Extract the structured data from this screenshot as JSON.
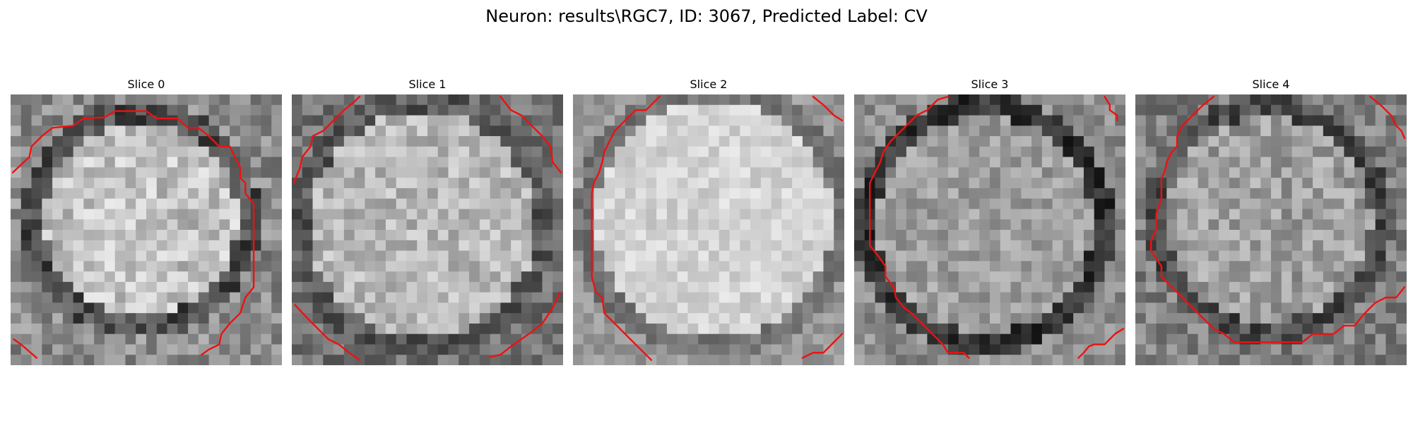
{
  "figure": {
    "title": "Neuron: results\\RGC7, ID: 3067, Predicted Label: CV"
  },
  "grid_size": 26,
  "contour_color": "#ee1111",
  "slices": [
    {
      "label": "Slice 0",
      "contours": [
        [
          [
            0.2,
            7.5
          ],
          [
            1.8,
            6.0
          ],
          [
            2.0,
            5.0
          ],
          [
            3.0,
            4.0
          ],
          [
            4.0,
            3.2
          ],
          [
            6.0,
            3.0
          ],
          [
            7.0,
            2.3
          ],
          [
            9.0,
            2.2
          ],
          [
            10.0,
            1.6
          ],
          [
            13.0,
            1.6
          ],
          [
            14.0,
            2.3
          ],
          [
            16.0,
            2.3
          ],
          [
            17.0,
            3.2
          ],
          [
            18.0,
            3.2
          ],
          [
            19.0,
            4.0
          ],
          [
            20.0,
            5.0
          ],
          [
            21.0,
            5.0
          ],
          [
            21.5,
            6.0
          ],
          [
            22.0,
            7.0
          ],
          [
            22.0,
            8.0
          ],
          [
            22.5,
            8.5
          ],
          [
            22.5,
            9.5
          ],
          [
            23.3,
            10.5
          ],
          [
            23.3,
            18.5
          ],
          [
            22.5,
            19.5
          ],
          [
            22.0,
            21.0
          ],
          [
            21.0,
            22.0
          ],
          [
            20.2,
            23.0
          ],
          [
            20.0,
            24.0
          ],
          [
            19.0,
            24.5
          ],
          [
            18.3,
            25.0
          ]
        ],
        [
          [
            0.3,
            23.5
          ],
          [
            1.0,
            24.0
          ],
          [
            2.5,
            25.3
          ]
        ]
      ]
    },
    {
      "label": "Slice 1",
      "contours": [
        [
          [
            0.2,
            8.5
          ],
          [
            0.8,
            7.0
          ],
          [
            1.0,
            6.0
          ],
          [
            1.8,
            5.0
          ],
          [
            2.0,
            4.0
          ],
          [
            3.0,
            3.5
          ],
          [
            4.0,
            2.5
          ],
          [
            5.0,
            1.5
          ],
          [
            6.0,
            0.7
          ],
          [
            6.5,
            0.2
          ]
        ],
        [
          [
            20.0,
            0.2
          ],
          [
            21.0,
            1.5
          ],
          [
            22.0,
            2.0
          ],
          [
            23.0,
            3.0
          ],
          [
            24.0,
            4.0
          ],
          [
            24.8,
            5.0
          ],
          [
            25.0,
            6.5
          ],
          [
            25.8,
            7.5
          ]
        ],
        [
          [
            0.3,
            20.2
          ],
          [
            1.5,
            21.5
          ],
          [
            2.5,
            22.5
          ],
          [
            3.5,
            23.5
          ],
          [
            4.5,
            24.0
          ],
          [
            5.5,
            24.8
          ],
          [
            6.5,
            25.5
          ]
        ],
        [
          [
            25.7,
            19.0
          ],
          [
            25.0,
            20.5
          ],
          [
            24.0,
            22.0
          ],
          [
            23.0,
            22.8
          ],
          [
            22.0,
            23.5
          ],
          [
            21.0,
            24.2
          ],
          [
            20.0,
            25.0
          ],
          [
            19.0,
            25.2
          ]
        ]
      ]
    },
    {
      "label": "Slice 2",
      "contours": [
        [
          [
            8.3,
            0.2
          ],
          [
            7.0,
            1.5
          ],
          [
            6.0,
            1.5
          ],
          [
            5.0,
            2.5
          ],
          [
            4.0,
            3.5
          ],
          [
            3.5,
            4.5
          ],
          [
            3.0,
            5.5
          ],
          [
            2.8,
            6.5
          ],
          [
            2.5,
            7.5
          ],
          [
            2.0,
            8.5
          ],
          [
            1.8,
            9.5
          ],
          [
            1.8,
            17.5
          ],
          [
            2.2,
            19.0
          ],
          [
            2.8,
            19.5
          ],
          [
            3.0,
            21.0
          ],
          [
            3.5,
            21.5
          ],
          [
            4.5,
            22.5
          ],
          [
            5.5,
            23.5
          ],
          [
            6.5,
            24.5
          ],
          [
            7.5,
            25.5
          ]
        ],
        [
          [
            23.0,
            0.2
          ],
          [
            24.0,
            1.0
          ],
          [
            25.0,
            2.0
          ],
          [
            25.8,
            2.5
          ]
        ],
        [
          [
            22.0,
            25.3
          ],
          [
            23.0,
            24.8
          ],
          [
            24.0,
            24.8
          ],
          [
            25.0,
            23.8
          ],
          [
            25.8,
            23.0
          ]
        ]
      ]
    },
    {
      "label": "Slice 3",
      "contours": [
        [
          [
            9.0,
            0.2
          ],
          [
            8.0,
            0.5
          ],
          [
            7.5,
            1.0
          ],
          [
            7.0,
            1.5
          ],
          [
            6.0,
            2.0
          ],
          [
            5.5,
            2.5
          ],
          [
            4.5,
            3.5
          ],
          [
            3.5,
            4.5
          ],
          [
            2.8,
            5.5
          ],
          [
            2.5,
            6.5
          ],
          [
            2.0,
            7.5
          ],
          [
            1.5,
            8.5
          ],
          [
            1.5,
            14.5
          ],
          [
            2.3,
            15.5
          ],
          [
            3.0,
            16.5
          ],
          [
            3.0,
            17.5
          ],
          [
            3.8,
            18.5
          ],
          [
            4.0,
            19.5
          ],
          [
            4.8,
            20.5
          ],
          [
            5.5,
            21.0
          ],
          [
            6.5,
            22.0
          ],
          [
            7.5,
            23.0
          ],
          [
            8.5,
            24.0
          ],
          [
            9.0,
            24.8
          ],
          [
            10.5,
            24.8
          ],
          [
            11.0,
            25.3
          ]
        ],
        [
          [
            24.0,
            0.2
          ],
          [
            24.5,
            1.0
          ],
          [
            24.5,
            1.5
          ],
          [
            25.2,
            2.0
          ],
          [
            25.2,
            2.5
          ]
        ],
        [
          [
            21.5,
            25.3
          ],
          [
            22.0,
            24.8
          ],
          [
            22.5,
            24.2
          ],
          [
            23.0,
            24.0
          ],
          [
            24.0,
            24.0
          ],
          [
            25.0,
            23.0
          ],
          [
            25.8,
            22.5
          ]
        ]
      ]
    },
    {
      "label": "Slice 4",
      "contours": [
        [
          [
            7.5,
            0.2
          ],
          [
            6.5,
            1.0
          ],
          [
            5.5,
            2.0
          ],
          [
            4.5,
            3.0
          ],
          [
            4.0,
            4.0
          ],
          [
            4.0,
            5.0
          ],
          [
            3.5,
            5.5
          ],
          [
            3.0,
            6.5
          ],
          [
            2.8,
            7.5
          ],
          [
            2.5,
            8.0
          ],
          [
            2.5,
            10.0
          ],
          [
            2.0,
            11.5
          ],
          [
            2.0,
            13.0
          ],
          [
            1.5,
            14.0
          ],
          [
            1.5,
            15.0
          ],
          [
            2.5,
            16.5
          ],
          [
            2.5,
            17.5
          ],
          [
            3.5,
            18.5
          ],
          [
            4.5,
            19.5
          ],
          [
            5.5,
            20.5
          ],
          [
            6.5,
            21.5
          ],
          [
            7.5,
            22.5
          ],
          [
            8.5,
            23.0
          ],
          [
            9.5,
            23.8
          ],
          [
            16.0,
            23.8
          ],
          [
            17.0,
            23.0
          ],
          [
            19.0,
            23.0
          ],
          [
            20.0,
            22.2
          ],
          [
            21.0,
            22.2
          ],
          [
            22.0,
            21.0
          ],
          [
            23.0,
            20.0
          ],
          [
            24.0,
            19.5
          ],
          [
            25.0,
            19.5
          ],
          [
            25.8,
            18.5
          ]
        ],
        [
          [
            22.5,
            0.2
          ],
          [
            23.5,
            1.0
          ],
          [
            24.5,
            2.0
          ],
          [
            25.0,
            3.0
          ],
          [
            25.5,
            3.5
          ],
          [
            25.8,
            4.2
          ]
        ]
      ]
    }
  ]
}
